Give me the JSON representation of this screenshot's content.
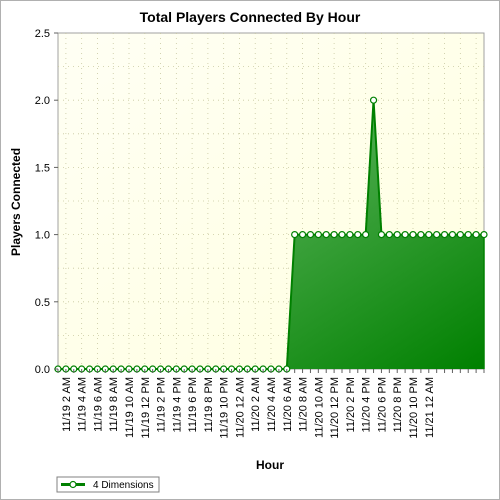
{
  "chart_data": {
    "type": "area",
    "title": "Total Players Connected By Hour",
    "xlabel": "Hour",
    "ylabel": "Players Connected",
    "ylim": [
      0,
      2.5
    ],
    "yticks": [
      "0.0",
      "0.5",
      "1.0",
      "1.5",
      "2.0",
      "2.5"
    ],
    "ytick_values": [
      0,
      0.5,
      1.0,
      1.5,
      2.0,
      2.5
    ],
    "x_tick_labels": [
      "11/19 2 AM",
      "11/19 4 AM",
      "11/19 6 AM",
      "11/19 8 AM",
      "11/19 10 AM",
      "11/19 12 PM",
      "11/19 2 PM",
      "11/19 4 PM",
      "11/19 6 PM",
      "11/19 8 PM",
      "11/19 10 PM",
      "11/20 12 AM",
      "11/20 2 AM",
      "11/20 4 AM",
      "11/20 6 AM",
      "11/20 8 AM",
      "11/20 10 AM",
      "11/20 12 PM",
      "11/20 2 PM",
      "11/20 4 PM",
      "11/20 6 PM",
      "11/20 8 PM",
      "11/20 10 PM",
      "11/21 12 AM"
    ],
    "series": [
      {
        "name": "4 Dimensions",
        "color": "#008000",
        "values": [
          0,
          0,
          0,
          0,
          0,
          0,
          0,
          0,
          0,
          0,
          0,
          0,
          0,
          0,
          0,
          0,
          0,
          0,
          0,
          0,
          0,
          0,
          0,
          0,
          0,
          0,
          0,
          0,
          0,
          0,
          1,
          1,
          1,
          1,
          1,
          1,
          1,
          1,
          1,
          1,
          2,
          1,
          1,
          1,
          1,
          1,
          1,
          1,
          1,
          1,
          1,
          1,
          1,
          1,
          1
        ]
      }
    ],
    "grid": true,
    "legend": "bottom-left",
    "plot_background": "#ffffe8"
  }
}
